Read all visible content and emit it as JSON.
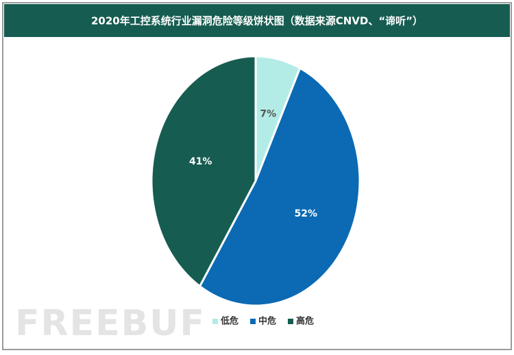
{
  "chart_data": {
    "type": "pie",
    "title": "2020年工控系统行业漏洞危险等级饼状图（数据来源CNVD、“谛听”）",
    "categories": [
      "低危",
      "中危",
      "高危"
    ],
    "values": [
      7,
      52,
      41
    ],
    "value_labels": [
      "7%",
      "52%",
      "41%"
    ],
    "colors": [
      "#b3ece6",
      "#0b6ab3",
      "#175c51"
    ],
    "label_colors": [
      "#555555",
      "#ffffff",
      "#ffffff"
    ],
    "legend": "bottom",
    "watermark": "FREEBUF"
  }
}
